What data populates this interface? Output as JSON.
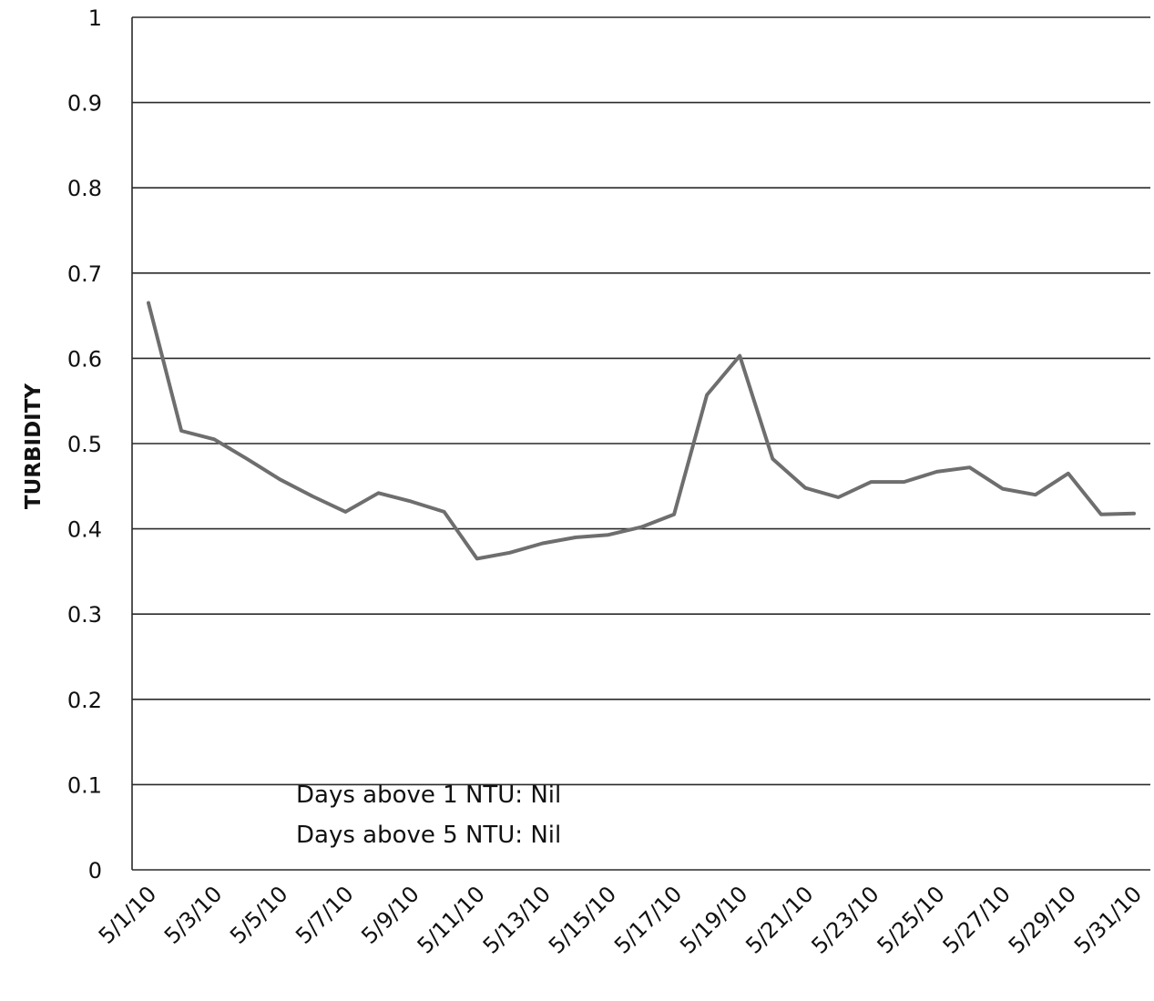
{
  "chart_data": {
    "type": "line",
    "title": "",
    "xlabel": "",
    "ylabel": "TURBIDITY",
    "ylim": [
      0,
      1
    ],
    "yticks": [
      "0",
      "0.1",
      "0.2",
      "0.3",
      "0.4",
      "0.5",
      "0.6",
      "0.7",
      "0.8",
      "0.9",
      "1"
    ],
    "x": [
      "5/1/10",
      "5/2/10",
      "5/3/10",
      "5/4/10",
      "5/5/10",
      "5/6/10",
      "5/7/10",
      "5/8/10",
      "5/9/10",
      "5/10/10",
      "5/11/10",
      "5/12/10",
      "5/13/10",
      "5/14/10",
      "5/15/10",
      "5/16/10",
      "5/17/10",
      "5/18/10",
      "5/19/10",
      "5/20/10",
      "5/21/10",
      "5/22/10",
      "5/23/10",
      "5/24/10",
      "5/25/10",
      "5/26/10",
      "5/27/10",
      "5/28/10",
      "5/29/10",
      "5/30/10",
      "5/31/10"
    ],
    "xtick_labels": [
      "5/1/10",
      "5/3/10",
      "5/5/10",
      "5/7/10",
      "5/9/10",
      "5/11/10",
      "5/13/10",
      "5/15/10",
      "5/17/10",
      "5/19/10",
      "5/21/10",
      "5/23/10",
      "5/25/10",
      "5/27/10",
      "5/29/10",
      "5/31/10"
    ],
    "series": [
      {
        "values": [
          0.665,
          0.515,
          0.505,
          0.482,
          0.458,
          0.438,
          0.42,
          0.442,
          0.432,
          0.42,
          0.365,
          0.372,
          0.383,
          0.39,
          0.393,
          0.402,
          0.417,
          0.557,
          0.603,
          0.482,
          0.448,
          0.437,
          0.455,
          0.455,
          0.467,
          0.472,
          0.447,
          0.44,
          0.465,
          0.417,
          0.418
        ],
        "color": "#6e6e6e"
      }
    ],
    "grid": true,
    "legend": "none",
    "annotations": [
      "Days above 1 NTU: Nil",
      "Days above 5 NTU: Nil"
    ]
  }
}
